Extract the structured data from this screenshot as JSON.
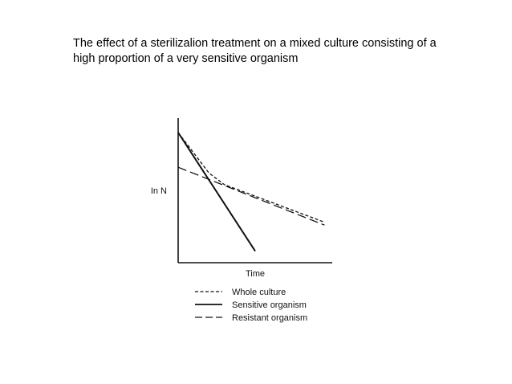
{
  "slide": {
    "title_line1": "The effect of a sterilizalion treatment on a mixed culture consisting of a",
    "title_line2": "high proportion of a very sensitive organism"
  },
  "chart_data": {
    "type": "line",
    "ylabel": "In N",
    "xlabel": "Time",
    "xlim": [
      0,
      10
    ],
    "ylim": [
      0,
      10
    ],
    "grid": false,
    "legend_position": "bottom",
    "series": [
      {
        "name": "Whole culture",
        "style": "dotted-dash",
        "x": [
          0,
          1,
          2,
          3,
          4,
          6,
          8,
          9.5
        ],
        "y": [
          9.0,
          7.6,
          6.2,
          5.4,
          5.0,
          4.2,
          3.4,
          2.8
        ]
      },
      {
        "name": "Sensitive organism",
        "style": "solid",
        "x": [
          0,
          5.0
        ],
        "y": [
          9.0,
          0.8
        ]
      },
      {
        "name": "Resistant organism",
        "style": "long-dash",
        "x": [
          0,
          9.5
        ],
        "y": [
          6.6,
          2.6
        ]
      }
    ],
    "colors": {
      "ink": "#111111"
    }
  }
}
